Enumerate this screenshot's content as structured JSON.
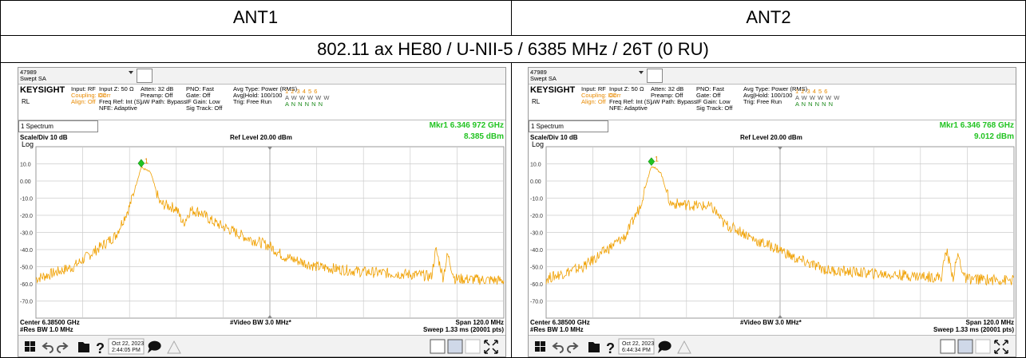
{
  "table": {
    "headers": [
      "ANT1",
      "ANT2"
    ],
    "caption": "802.11 ax HE80 / U-NII-5 / 6385 MHz / 26T (0 RU)"
  },
  "panels": [
    {
      "id": "47989",
      "mode": "Swept SA",
      "brand": "KEYSIGHT",
      "rl": "RL",
      "status": [
        [
          "Input: RF",
          "Coupling: DC",
          "Align: Off"
        ],
        [
          "Input Z: 50 Ω",
          "Corr",
          "Freq Ref: Int (S)",
          "NFE: Adaptive"
        ],
        [
          "Atten: 32 dB",
          "Preamp: Off",
          "µW Path: Bypass"
        ],
        [
          "PNO: Fast",
          "Gate: Off",
          "IF Gain: Low",
          "Sig Track: Off"
        ],
        [
          "Avg Type: Power (RMS)",
          "Avg|Hold: 100/100",
          "Trig: Free Run"
        ]
      ],
      "traces": [
        "1 2 3 4 5 6",
        "A W W W W W",
        "A N N N N N"
      ],
      "window": "1 Spectrum",
      "marker_freq": "Mkr1 6.346 972 GHz",
      "marker_level": "8.385 dBm",
      "scale": "Scale/Div 10 dB",
      "ref_level": "Ref Level 20.00 dBm",
      "log": "Log",
      "marker_id": "1",
      "yticks": [
        "10.0",
        "0.00",
        "-10.0",
        "-20.0",
        "-30.0",
        "-40.0",
        "-50.0",
        "-60.0",
        "-70.0"
      ],
      "center": "Center 6.38500 GHz",
      "res_bw": "#Res BW 1.0 MHz",
      "video_bw": "#Video BW 3.0 MHz*",
      "span": "Span 120.0 MHz",
      "sweep": "Sweep 1.33 ms (20001 pts)",
      "date": "Oct 22, 2023",
      "time": "2:44:05 PM",
      "help": "?"
    },
    {
      "id": "47989",
      "mode": "Swept SA",
      "brand": "KEYSIGHT",
      "rl": "RL",
      "status": [
        [
          "Input: RF",
          "Coupling: DC",
          "Align: Off"
        ],
        [
          "Input Z: 50 Ω",
          "Corr",
          "Freq Ref: Int (S)",
          "NFE: Adaptive"
        ],
        [
          "Atten: 32 dB",
          "Preamp: Off",
          "µW Path: Bypass"
        ],
        [
          "PNO: Fast",
          "Gate: Off",
          "IF Gain: Low",
          "Sig Track: Off"
        ],
        [
          "Avg Type: Power (RMS)",
          "Avg|Hold: 100/100",
          "Trig: Free Run"
        ]
      ],
      "traces": [
        "1 2 3 4 5 6",
        "A W W W W W",
        "A N N N N N"
      ],
      "window": "1 Spectrum",
      "marker_freq": "Mkr1 6.346 768 GHz",
      "marker_level": "9.012 dBm",
      "scale": "Scale/Div 10 dB",
      "ref_level": "Ref Level 20.00 dBm",
      "log": "Log",
      "marker_id": "1",
      "yticks": [
        "10.0",
        "0.00",
        "-10.0",
        "-20.0",
        "-30.0",
        "-40.0",
        "-50.0",
        "-60.0",
        "-70.0"
      ],
      "center": "Center 6.38500 GHz",
      "res_bw": "#Res BW 1.0 MHz",
      "video_bw": "#Video BW 3.0 MHz*",
      "span": "Span 120.0 MHz",
      "sweep": "Sweep 1.33 ms (20001 pts)",
      "date": "Oct 22, 2023",
      "time": "6:44:34 PM",
      "help": "?"
    }
  ]
}
